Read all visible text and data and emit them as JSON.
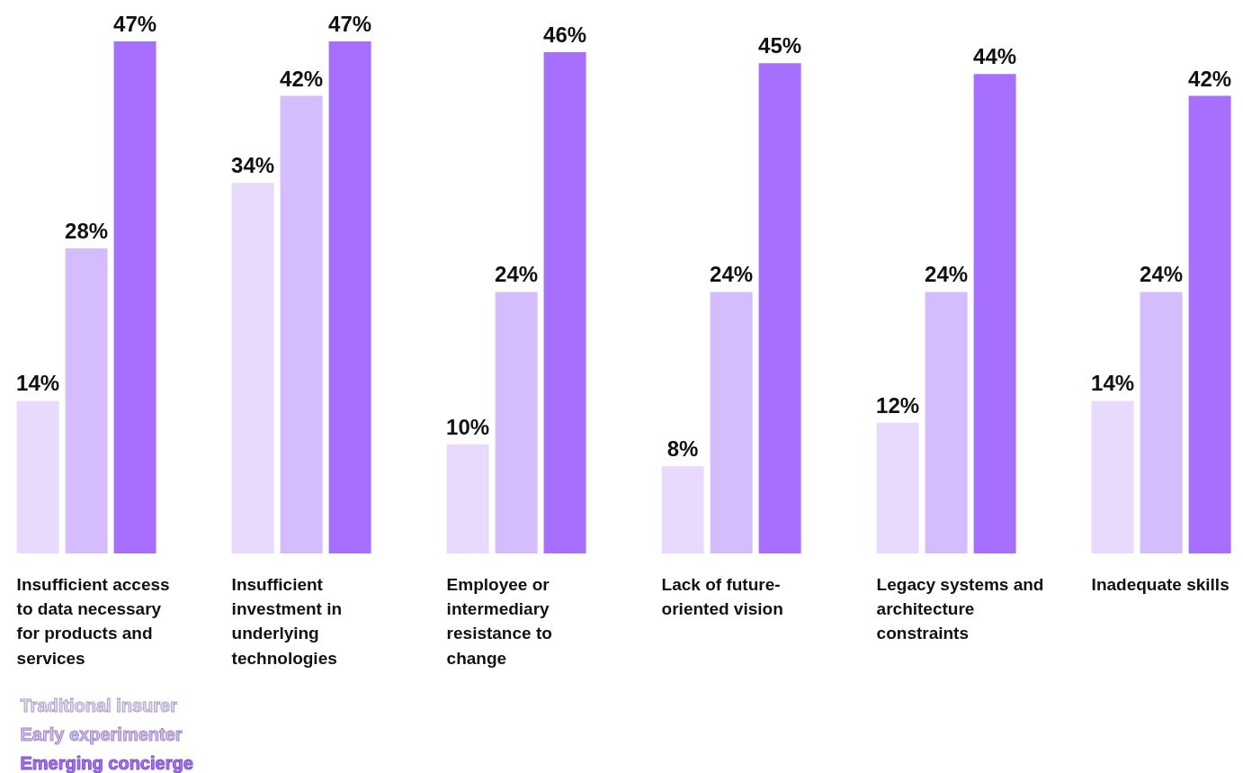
{
  "chart_data": {
    "type": "bar",
    "categories": [
      "Insufficient access to data necessary for products and services",
      "Insufficient investment in underlying technologies",
      "Employee or intermediary resistance to change",
      "Lack of future-oriented vision",
      "Legacy systems and architecture constraints",
      "Inadequate skills"
    ],
    "series": [
      {
        "name": "Traditional insurer",
        "color": "#e8dafd",
        "values": [
          14,
          34,
          10,
          8,
          12,
          14
        ],
        "value_labels": [
          "14%",
          "34%",
          "10%",
          "8%",
          "12%",
          "14%"
        ]
      },
      {
        "name": "Early experimenter",
        "color": "#d4bcfd",
        "values": [
          28,
          42,
          24,
          24,
          24,
          24
        ],
        "value_labels": [
          "28%",
          "42%",
          "24%",
          "24%",
          "24%",
          "24%"
        ]
      },
      {
        "name": "Emerging concierge",
        "color": "#a66ffe",
        "values": [
          47,
          47,
          46,
          45,
          44,
          42
        ],
        "value_labels": [
          "47%",
          "47%",
          "46%",
          "45%",
          "44%",
          "42%"
        ]
      }
    ],
    "legend": "bottom left",
    "grid": false
  }
}
